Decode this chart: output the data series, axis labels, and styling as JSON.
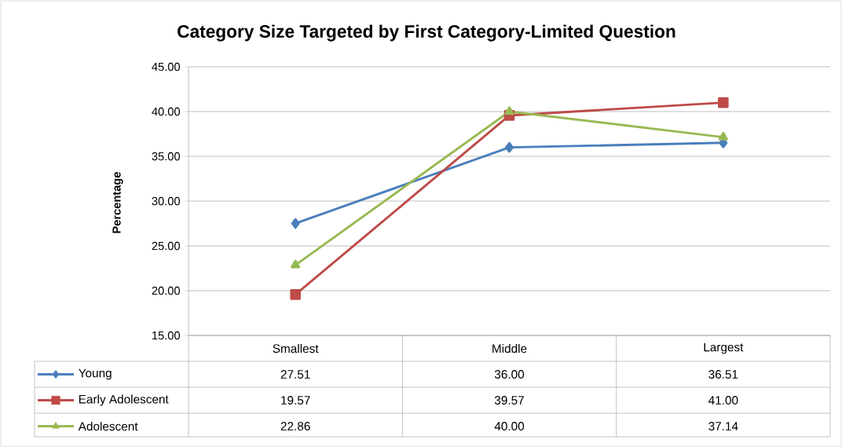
{
  "chart_data": {
    "type": "line",
    "title": "Category Size Targeted by First Category-Limited Question",
    "ylabel": "Percentage",
    "categories": [
      "Smallest",
      "Middle",
      "Largest"
    ],
    "series": [
      {
        "name": "Young",
        "color": "#4a7ebb",
        "marker": "diamond",
        "values": [
          27.51,
          36.0,
          36.51
        ],
        "value_labels": [
          "27.51",
          "36.00",
          "36.51"
        ]
      },
      {
        "name": "Early Adolescent",
        "color": "#be4b48",
        "marker": "square",
        "values": [
          19.57,
          39.57,
          41.0
        ],
        "value_labels": [
          "19.57",
          "39.57",
          "41.00"
        ]
      },
      {
        "name": "Adolescent",
        "color": "#98b954",
        "marker": "triangle",
        "values": [
          22.86,
          40.0,
          37.14
        ],
        "value_labels": [
          "22.86",
          "40.00",
          "37.14"
        ]
      }
    ],
    "ylim": [
      15,
      45
    ],
    "yticks": [
      {
        "value": 15,
        "label": "15.00"
      },
      {
        "value": 20,
        "label": "20.00"
      },
      {
        "value": 25,
        "label": "25.00"
      },
      {
        "value": 30,
        "label": "30.00"
      },
      {
        "value": 35,
        "label": "35.00"
      },
      {
        "value": 40,
        "label": "40.00"
      },
      {
        "value": 45,
        "label": "45.00"
      }
    ],
    "grid": "y",
    "legend": "bottom"
  }
}
